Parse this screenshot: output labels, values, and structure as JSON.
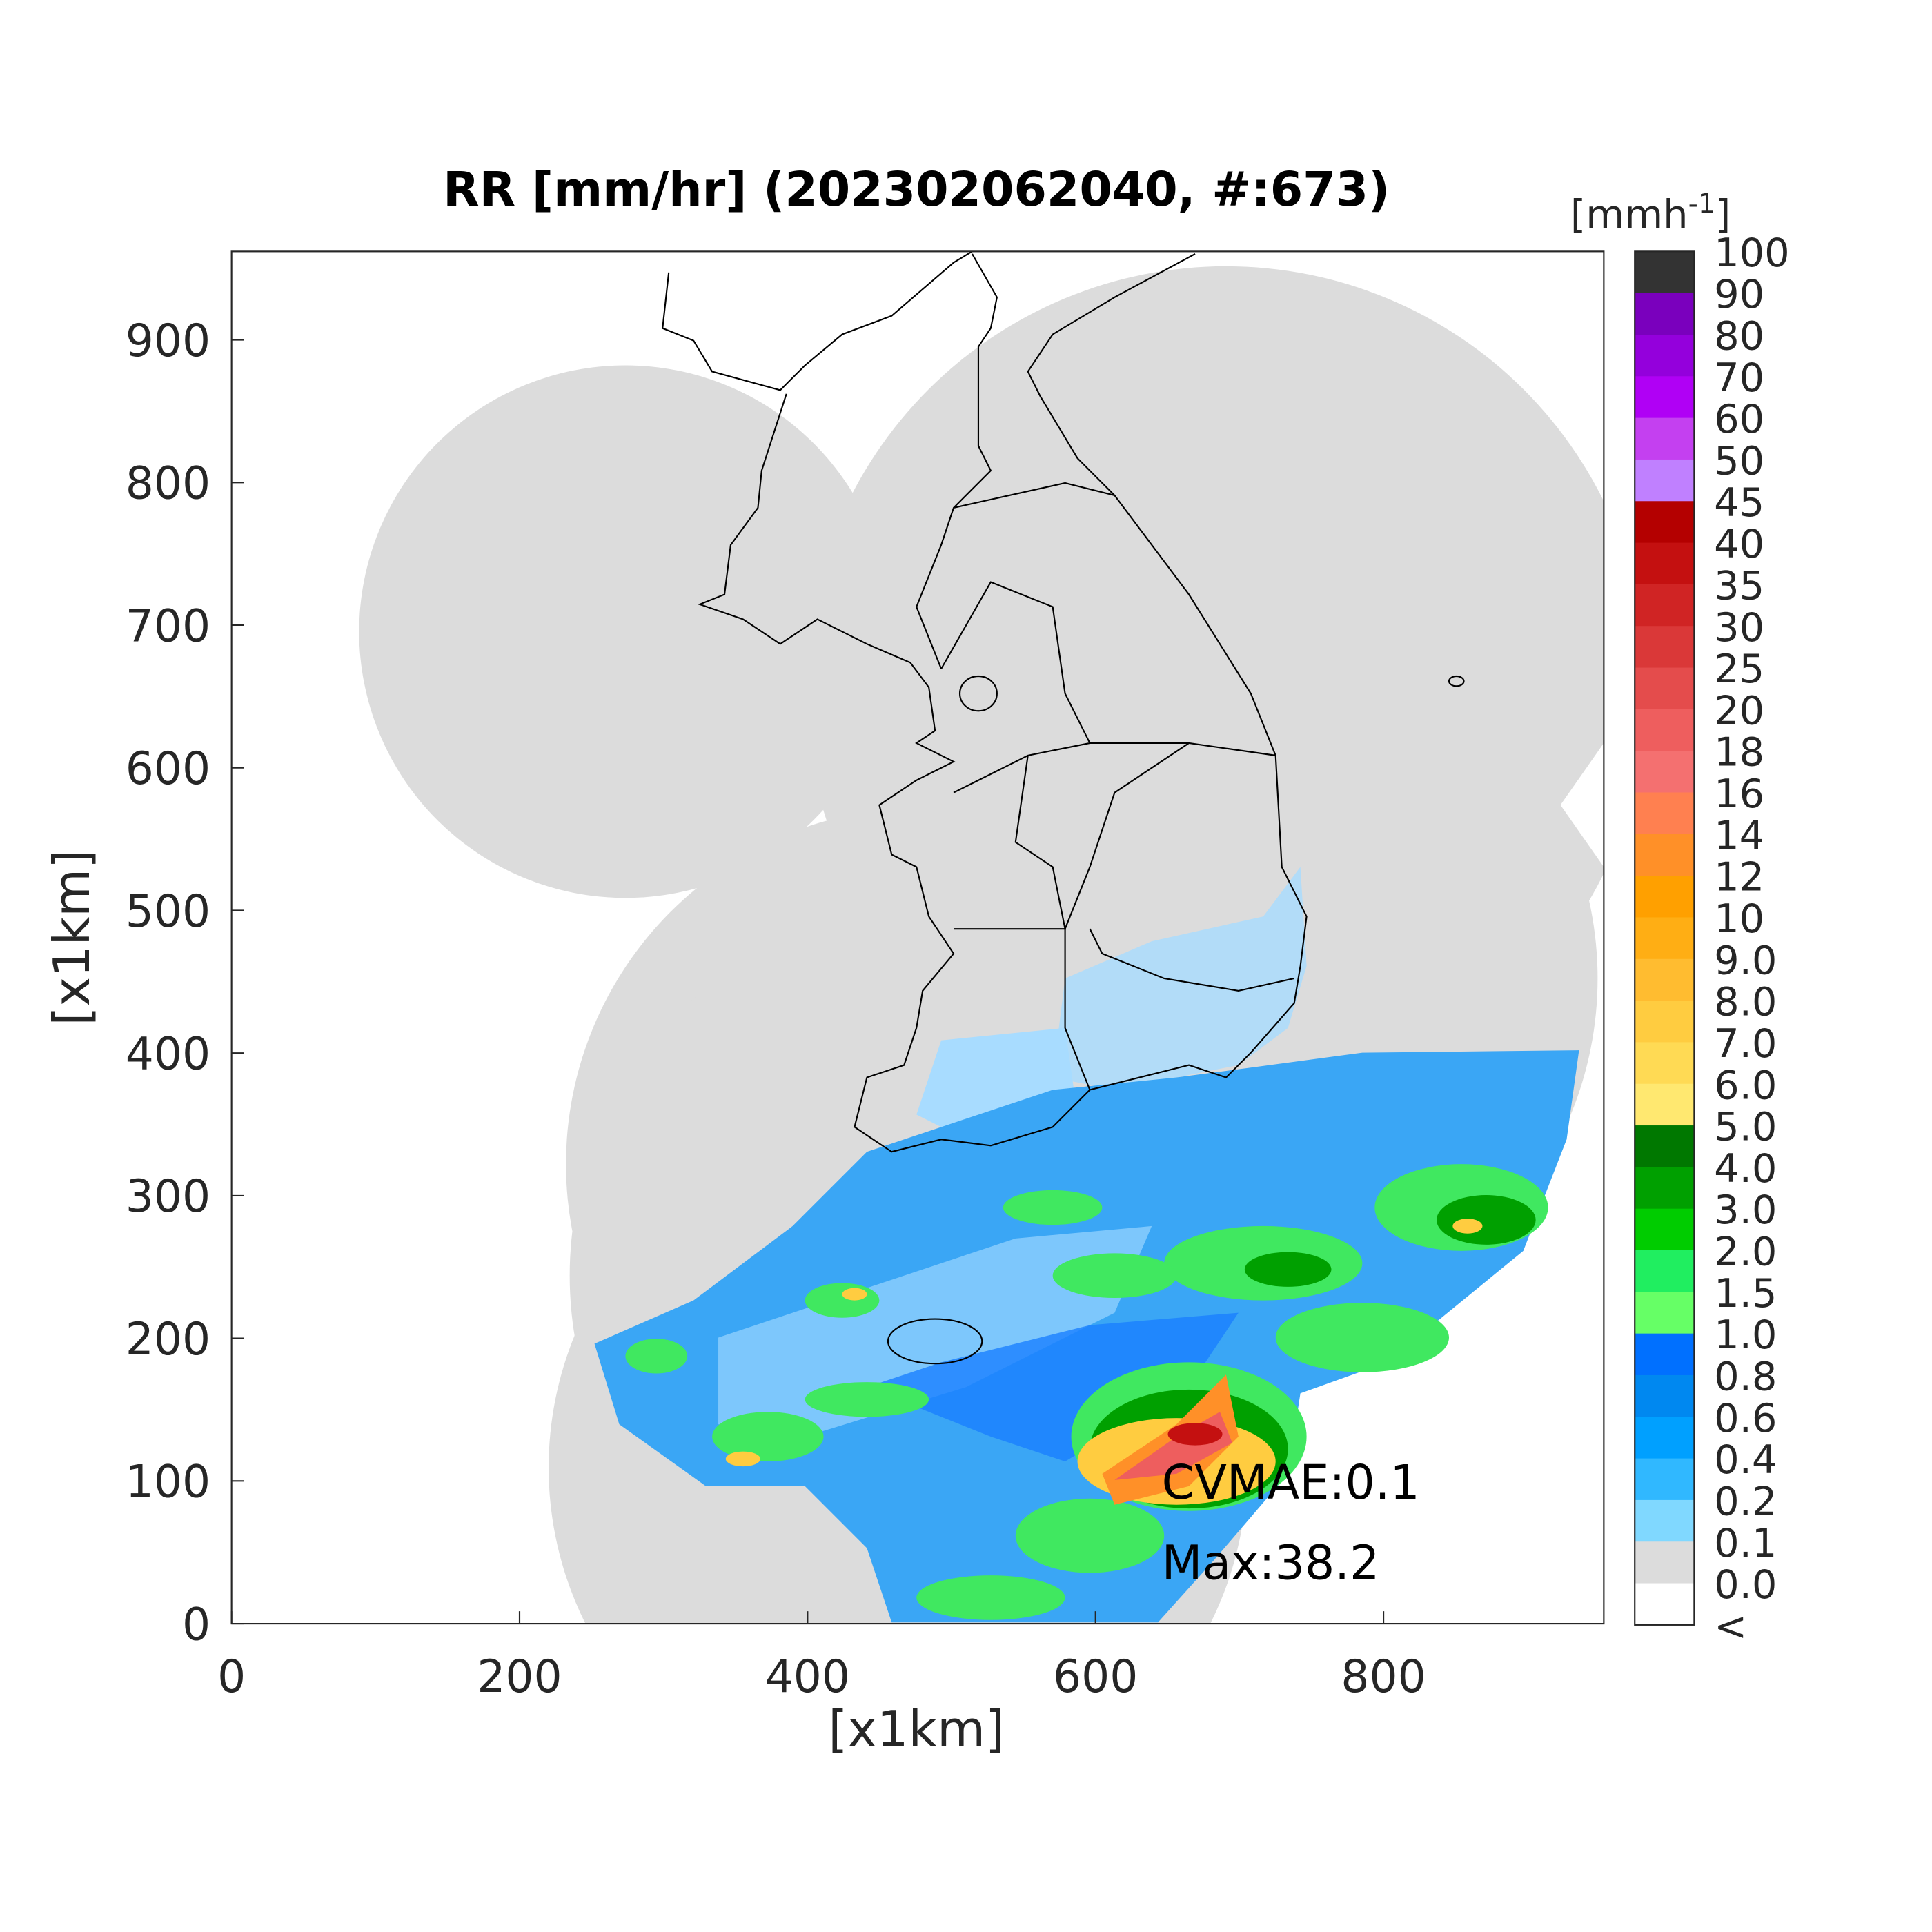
{
  "title": "RR [mm/hr] (202302062040, #:673)",
  "x_label": "[x1km]",
  "y_label": "[x1km]",
  "xlim": [
    0,
    953
  ],
  "ylim": [
    0,
    962
  ],
  "xticks": [
    0,
    200,
    400,
    600,
    800
  ],
  "yticks": [
    0,
    100,
    200,
    300,
    400,
    500,
    600,
    700,
    800,
    900
  ],
  "annotations": [
    "CVMAE:0.1",
    "Max:38.2"
  ],
  "colorbar": {
    "unit": "[mmh",
    "unit_exponent": "-1",
    "unit_close": "]",
    "labels": [
      "100",
      "90",
      "80",
      "70",
      "60",
      "50",
      "45",
      "40",
      "35",
      "30",
      "25",
      "20",
      "18",
      "16",
      "14",
      "12",
      "10",
      "9.0",
      "8.0",
      "7.0",
      "6.0",
      "5.0",
      "4.0",
      "3.0",
      "2.0",
      "1.5",
      "1.0",
      "0.8",
      "0.6",
      "0.4",
      "0.2",
      "0.1",
      "0.0",
      "<"
    ],
    "colors": [
      "#333333",
      "#7a00bd",
      "#9400dc",
      "#b000f5",
      "#c440f0",
      "#c080ff",
      "#b40000",
      "#c41010",
      "#d02424",
      "#da3838",
      "#e44c4c",
      "#ee5e5e",
      "#f47070",
      "#ff8050",
      "#ff9028",
      "#ffa000",
      "#ffae14",
      "#ffbc30",
      "#ffcc40",
      "#ffda54",
      "#ffe870",
      "#007800",
      "#00a000",
      "#00cc00",
      "#20ee60",
      "#66ff66",
      "#0070ff",
      "#0088f0",
      "#00a0ff",
      "#30b8ff",
      "#80d8ff",
      "#dcdcdc",
      "#ffffff"
    ]
  }
}
